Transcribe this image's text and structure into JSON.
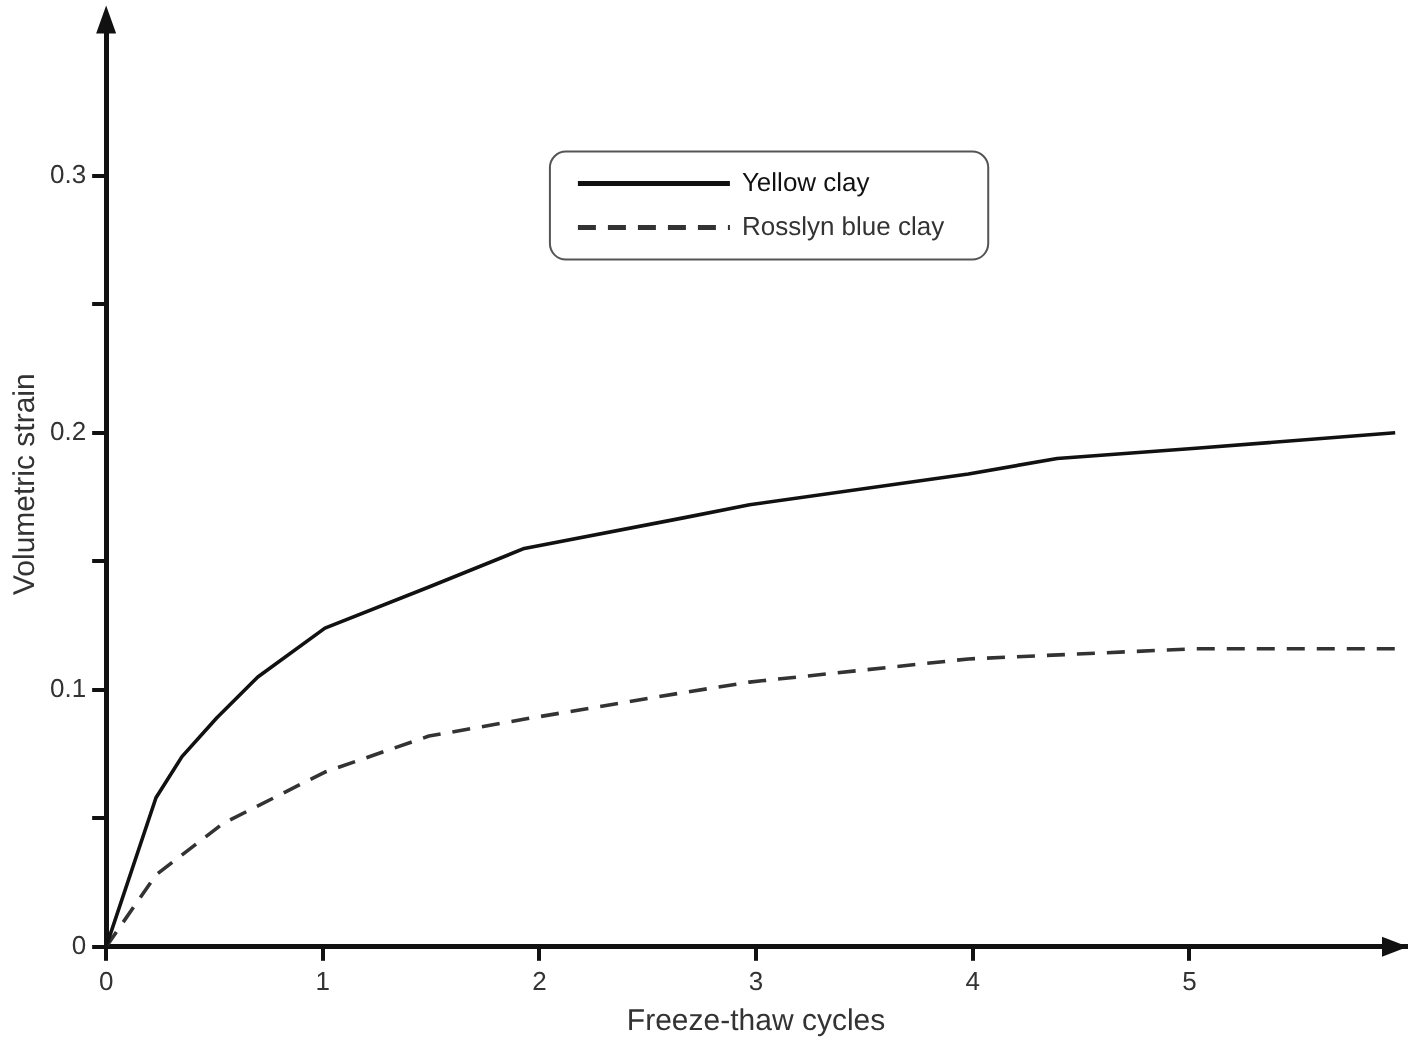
{
  "chart_data": {
    "type": "line",
    "xlabel": "Freeze-thaw cycles",
    "ylabel": "Volumetric strain",
    "xlim": [
      0,
      6
    ],
    "xticks": [
      0,
      1,
      2,
      3,
      4,
      5
    ],
    "ylim": [
      0,
      0.36
    ],
    "yticks": [
      0,
      {
        "value": 0.05,
        "label": null
      },
      0.1,
      {
        "value": 0.15,
        "label": null
      },
      0.2,
      {
        "value": 0.25,
        "label": null
      },
      0.3
    ],
    "grid": false,
    "legend": "top",
    "marker": "none",
    "series": [
      {
        "name": "Yellow clay",
        "color": "#111111",
        "line_style": "solid",
        "x": [
          0,
          0.23,
          0.35,
          0.51,
          0.7,
          1.01,
          1.49,
          1.93,
          2.67,
          2.97,
          3.98,
          4.39,
          5.03,
          5.95
        ],
        "values": [
          0,
          0.058,
          0.074,
          0.089,
          0.105,
          0.124,
          0.14,
          0.155,
          0.167,
          0.172,
          0.184,
          0.19,
          0.194,
          0.2
        ]
      },
      {
        "name": "Rosslyn blue clay",
        "color": "#333333",
        "line_style": "dashed",
        "x": [
          0,
          0.23,
          0.54,
          1.01,
          1.49,
          1.96,
          2.67,
          2.97,
          3.98,
          5.03,
          5.95
        ],
        "values": [
          0,
          0.028,
          0.048,
          0.068,
          0.082,
          0.089,
          0.099,
          0.103,
          0.112,
          0.116,
          0.116
        ]
      }
    ]
  }
}
